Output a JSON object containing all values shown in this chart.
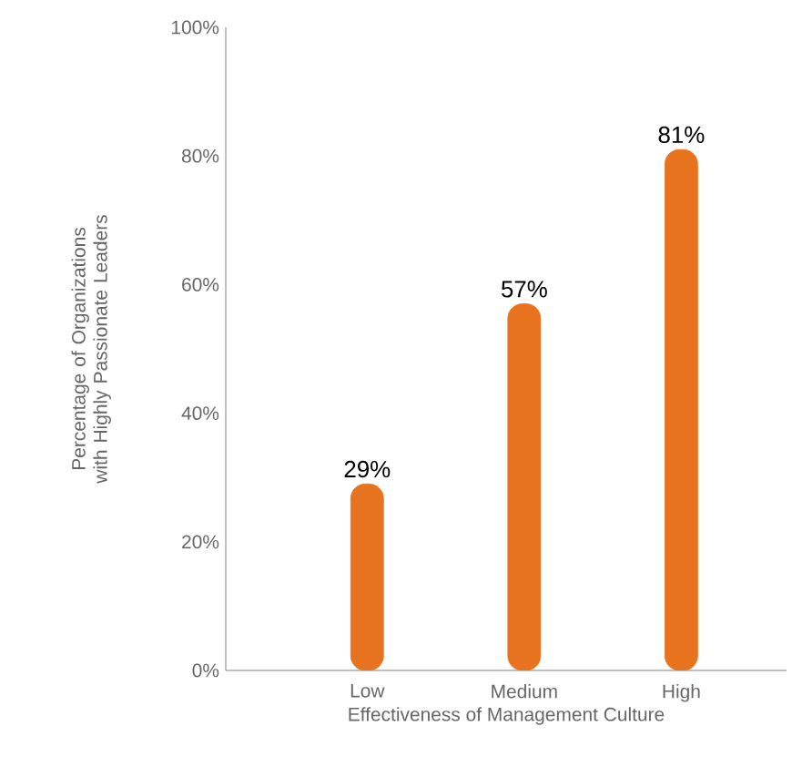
{
  "chart_data": {
    "type": "bar",
    "categories": [
      "Low",
      "Medium",
      "High"
    ],
    "values": [
      29,
      57,
      81
    ],
    "value_labels": [
      "29%",
      "57%",
      "81%"
    ],
    "color": "#e8731f",
    "xlabel": "Effectiveness of Management Culture",
    "ylabel": "Percentage of Organizations with Highly Passionate Leaders",
    "ylim": [
      0,
      100
    ],
    "yticks": [
      {
        "value": 0,
        "label": "0%"
      },
      {
        "value": 20,
        "label": "20%"
      },
      {
        "value": 40,
        "label": "40%"
      },
      {
        "value": 60,
        "label": "60%"
      },
      {
        "value": 80,
        "label": "80%"
      },
      {
        "value": 100,
        "label": "100%"
      }
    ],
    "grid": false
  }
}
